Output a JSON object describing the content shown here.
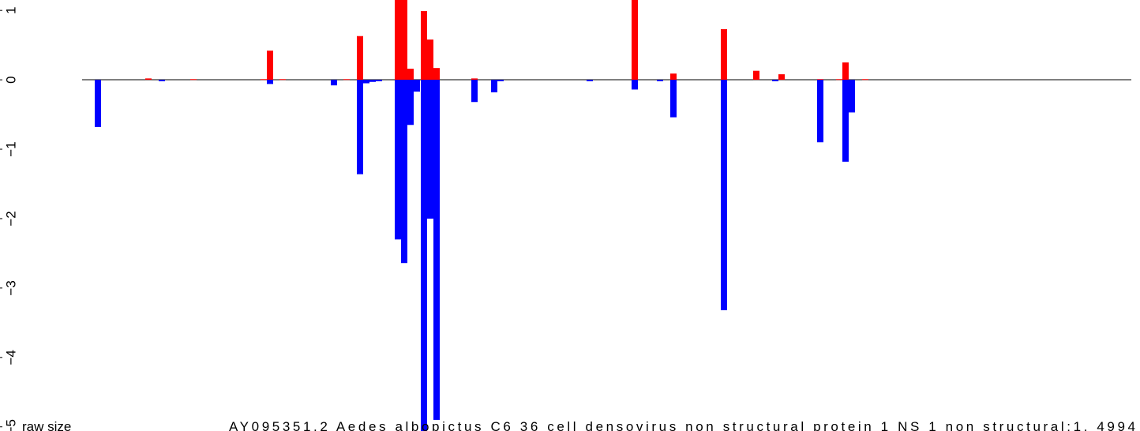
{
  "chart_data": {
    "type": "bar",
    "annotations": [
      "raw size",
      "AY095351.2 Aedes albopictus C6 36 cell densovirus non structural protein 1 NS 1 non structural:1, 4994"
    ],
    "xlim": [
      0,
      1444
    ],
    "ylim": [
      -5.06,
      1.15
    ],
    "yticks": [
      1,
      0,
      {
        "value": -1,
        "label": "−1"
      },
      {
        "value": -2,
        "label": "−2"
      },
      {
        "value": -3,
        "label": "−3"
      },
      {
        "value": -4,
        "label": "−4"
      },
      {
        "value": -5,
        "label": "−5"
      }
    ],
    "series": [
      {
        "color": "#ff0000",
        "x": [
          188,
          245,
          334,
          342,
          358,
          439,
          456,
          504,
          512,
          520,
          537,
          545,
          553,
          601,
          804,
          853,
          917,
          958,
          990,
          1039,
          1063,
          1071,
          1096
        ],
        "values": [
          0.02,
          0.01,
          0.01,
          0.42,
          0.01,
          0.01,
          0.63,
          1.3,
          1.3,
          0.16,
          0.99,
          0.58,
          0.17,
          0.02,
          1.3,
          0.09,
          0.73,
          0.13,
          0.08,
          0.01,
          0.01,
          0.25,
          0.01
        ]
      },
      {
        "color": "#0000ff",
        "x": [
          124,
          205,
          342,
          423,
          456,
          464,
          472,
          480,
          504,
          512,
          520,
          528,
          537,
          545,
          553,
          601,
          626,
          634,
          747,
          804,
          836,
          853,
          917,
          982,
          1039,
          1071,
          1079
        ],
        "values": [
          -0.68,
          -0.02,
          -0.06,
          -0.08,
          -1.36,
          -0.05,
          -0.03,
          -0.02,
          -2.3,
          -2.64,
          -0.65,
          -0.17,
          -5.2,
          -2.0,
          -4.9,
          -0.32,
          -0.18,
          -0.02,
          -0.02,
          -0.14,
          -0.02,
          -0.54,
          -3.32,
          -0.02,
          -0.9,
          -1.18,
          -0.47
        ]
      }
    ]
  }
}
